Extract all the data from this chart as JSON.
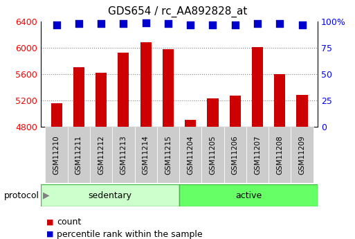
{
  "title": "GDS654 / rc_AA892828_at",
  "samples": [
    "GSM11210",
    "GSM11211",
    "GSM11212",
    "GSM11213",
    "GSM11214",
    "GSM11215",
    "GSM11204",
    "GSM11205",
    "GSM11206",
    "GSM11207",
    "GSM11208",
    "GSM11209"
  ],
  "counts": [
    5160,
    5700,
    5620,
    5930,
    6080,
    5980,
    4900,
    5230,
    5270,
    6010,
    5600,
    5280
  ],
  "percentile_ranks": [
    97,
    98,
    98,
    98,
    99,
    98,
    97,
    97,
    97,
    98,
    98,
    97
  ],
  "groups": [
    "sedentary",
    "sedentary",
    "sedentary",
    "sedentary",
    "sedentary",
    "sedentary",
    "active",
    "active",
    "active",
    "active",
    "active",
    "active"
  ],
  "group_labels": [
    "sedentary",
    "active"
  ],
  "sed_color": "#ccffcc",
  "act_color": "#66ff66",
  "group_border_color": "#44bb44",
  "bar_color": "#cc0000",
  "dot_color": "#0000cc",
  "ylim_left": [
    4800,
    6400
  ],
  "ylim_right": [
    0,
    100
  ],
  "yticks_left": [
    4800,
    5200,
    5600,
    6000,
    6400
  ],
  "yticks_right": [
    0,
    25,
    50,
    75,
    100
  ],
  "right_tick_labels": [
    "0",
    "25",
    "50",
    "75",
    "100%"
  ],
  "protocol_label": "protocol",
  "legend_count_label": "count",
  "legend_pct_label": "percentile rank within the sample",
  "bg_color": "#ffffff",
  "sample_label_bg": "#cccccc",
  "bar_width": 0.5,
  "dot_size": 55,
  "n_sedentary": 6,
  "n_active": 6
}
